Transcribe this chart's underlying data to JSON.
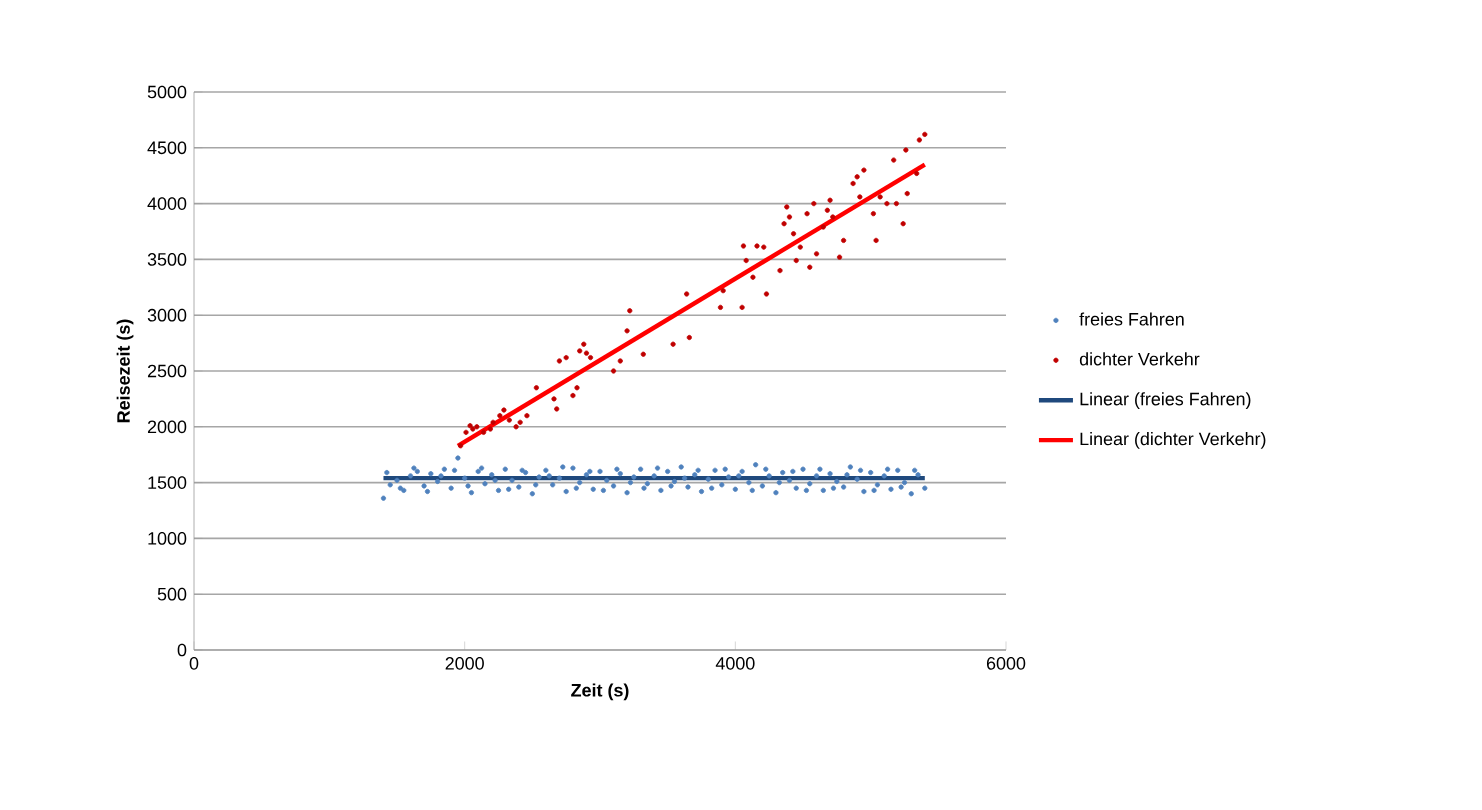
{
  "chart_data": {
    "type": "scatter",
    "xlabel": "Zeit (s)",
    "ylabel": "Reisezeit (s)",
    "xlim": [
      0,
      6000
    ],
    "ylim": [
      0,
      5000
    ],
    "xticks": [
      0,
      2000,
      4000,
      6000
    ],
    "yticks": [
      0,
      500,
      1000,
      1500,
      2000,
      2500,
      3000,
      3500,
      4000,
      4500,
      5000
    ],
    "grid": "y",
    "legend": "right",
    "series": [
      {
        "name": "freies Fahren",
        "marker": "circle",
        "color": "#4f81bd",
        "x": [
          1400,
          1450,
          1500,
          1550,
          1600,
          1650,
          1700,
          1750,
          1800,
          1850,
          1900,
          1950,
          2000,
          2050,
          2100,
          2150,
          2200,
          2250,
          2300,
          2350,
          2400,
          2450,
          2500,
          2550,
          2600,
          2650,
          2700,
          2750,
          2800,
          2850,
          2900,
          2950,
          3000,
          3050,
          3100,
          3150,
          3200,
          3250,
          3300,
          3350,
          3400,
          3450,
          3500,
          3550,
          3600,
          3650,
          3700,
          3750,
          3800,
          3850,
          3900,
          3950,
          4000,
          4050,
          4100,
          4150,
          4200,
          4250,
          4300,
          4350,
          4400,
          4450,
          4500,
          4550,
          4600,
          4650,
          4700,
          4750,
          4800,
          4850,
          4900,
          4950,
          5000,
          5050,
          5100,
          5150,
          5200,
          5250,
          5300,
          5350,
          5400,
          1425,
          1525,
          1625,
          1725,
          1825,
          1925,
          2025,
          2125,
          2225,
          2325,
          2425,
          2525,
          2625,
          2725,
          2825,
          2925,
          3025,
          3125,
          3225,
          3325,
          3425,
          3525,
          3625,
          3725,
          3825,
          3925,
          4025,
          4125,
          4225,
          4325,
          4425,
          4525,
          4625,
          4725,
          4825,
          4925,
          5025,
          5125,
          5225,
          5325
        ],
        "values": [
          1360,
          1480,
          1520,
          1430,
          1560,
          1600,
          1470,
          1580,
          1510,
          1620,
          1450,
          1720,
          1540,
          1410,
          1600,
          1490,
          1570,
          1430,
          1620,
          1520,
          1460,
          1590,
          1400,
          1550,
          1610,
          1480,
          1540,
          1420,
          1630,
          1500,
          1570,
          1440,
          1600,
          1520,
          1470,
          1580,
          1410,
          1550,
          1620,
          1490,
          1560,
          1430,
          1600,
          1510,
          1640,
          1460,
          1570,
          1420,
          1530,
          1610,
          1480,
          1550,
          1440,
          1600,
          1500,
          1660,
          1470,
          1560,
          1410,
          1590,
          1520,
          1450,
          1620,
          1490,
          1560,
          1430,
          1580,
          1510,
          1460,
          1640,
          1530,
          1420,
          1590,
          1480,
          1560,
          1440,
          1610,
          1500,
          1400,
          1570,
          1450,
          1590,
          1450,
          1630,
          1420,
          1560,
          1610,
          1470,
          1630,
          1520,
          1440,
          1610,
          1480,
          1560,
          1640,
          1450,
          1600,
          1430,
          1620,
          1500,
          1450,
          1630,
          1470,
          1540,
          1610,
          1450,
          1620,
          1560,
          1430,
          1620,
          1500,
          1600,
          1430,
          1620,
          1450,
          1570,
          1610,
          1430,
          1620,
          1460,
          1610
        ]
      },
      {
        "name": "dichter Verkehr",
        "marker": "circle",
        "color": "#c00000",
        "x": [
          1970,
          2010,
          2040,
          2060,
          2090,
          2140,
          2190,
          2210,
          2260,
          2290,
          2330,
          2380,
          2410,
          2460,
          2530,
          2660,
          2680,
          2700,
          2750,
          2800,
          2830,
          2850,
          2880,
          2900,
          2930,
          3100,
          3150,
          3200,
          3220,
          3320,
          3540,
          3640,
          3660,
          3890,
          3910,
          4060,
          4080,
          4050,
          4130,
          4160,
          4210,
          4230,
          4330,
          4360,
          4380,
          4400,
          4430,
          4450,
          4480,
          4530,
          4550,
          4580,
          4600,
          4650,
          4680,
          4700,
          4720,
          4770,
          4800,
          4870,
          4900,
          4920,
          4950,
          5020,
          5040,
          5070,
          5120,
          5170,
          5190,
          5240,
          5270,
          5260,
          5340,
          5360,
          5400
        ],
        "values": [
          1830,
          1950,
          2010,
          1980,
          2000,
          1950,
          1980,
          2040,
          2100,
          2150,
          2060,
          2000,
          2040,
          2100,
          2350,
          2250,
          2160,
          2590,
          2620,
          2280,
          2350,
          2680,
          2740,
          2660,
          2620,
          2500,
          2590,
          2860,
          3040,
          2650,
          2740,
          3190,
          2800,
          3070,
          3220,
          3620,
          3490,
          3070,
          3340,
          3620,
          3610,
          3190,
          3400,
          3820,
          3970,
          3880,
          3730,
          3490,
          3610,
          3910,
          3430,
          4000,
          3550,
          3790,
          3940,
          4030,
          3880,
          3520,
          3670,
          4180,
          4240,
          4060,
          4300,
          3910,
          3670,
          4060,
          4000,
          4390,
          4000,
          3820,
          4090,
          4480,
          4270,
          4570,
          4620
        ]
      },
      {
        "name": "Linear (freies Fahren)",
        "type": "line",
        "marker": "none",
        "color": "#1f497d",
        "x": [
          1400,
          5400
        ],
        "values": [
          1540,
          1540
        ]
      },
      {
        "name": "Linear (dichter Verkehr)",
        "type": "line",
        "marker": "none",
        "color": "#ff0000",
        "x": [
          1950,
          5400
        ],
        "values": [
          1830,
          4350
        ]
      }
    ]
  }
}
